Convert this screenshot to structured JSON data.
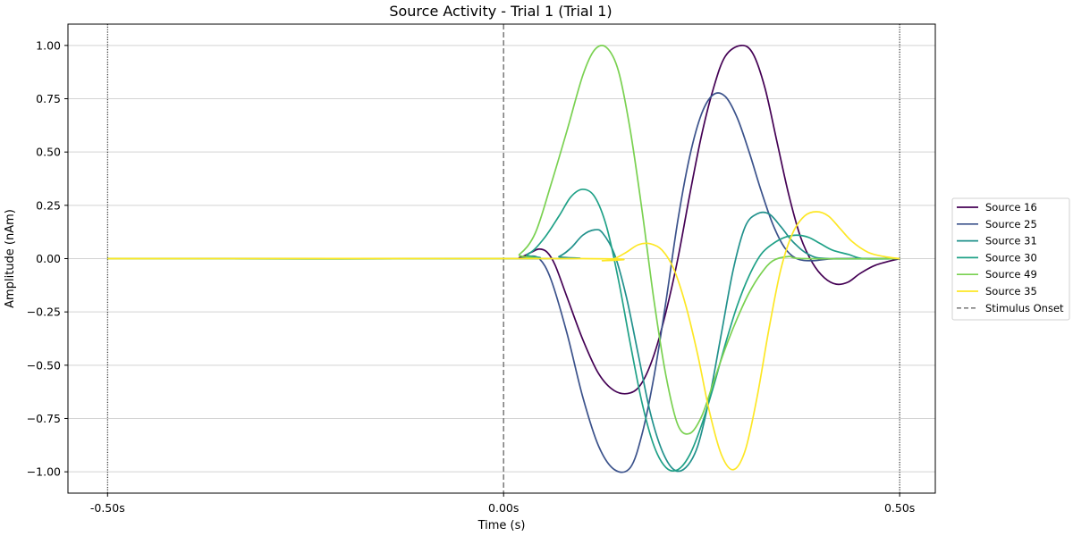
{
  "chart_data": {
    "type": "line",
    "title": "Source Activity - Trial 1 (Trial 1)",
    "xlabel": "Time (s)",
    "ylabel": "Amplitude (nAm)",
    "xlim": [
      -0.55,
      0.545
    ],
    "ylim": [
      -1.1,
      1.1
    ],
    "x_ticks": [
      -0.5,
      0.0,
      0.5
    ],
    "x_tick_labels": [
      "-0.50s",
      "0.00s",
      "0.50s"
    ],
    "y_ticks": [
      1.0,
      0.75,
      0.5,
      0.25,
      0.0,
      -0.25,
      -0.5,
      -0.75,
      -1.0
    ],
    "y_tick_labels": [
      "1.00",
      "0.75",
      "0.50",
      "0.25",
      "0.00",
      "−0.25",
      "−0.50",
      "−0.75",
      "−1.00"
    ],
    "grid": "y-only",
    "legend_position": "center-right-outside",
    "series": [
      {
        "name": "Source 16",
        "color": "#440154",
        "points": [
          [
            -0.5,
            0
          ],
          [
            0.0,
            0
          ],
          [
            0.02,
            0.005
          ],
          [
            0.035,
            0.03
          ],
          [
            0.045,
            0.045
          ],
          [
            0.055,
            0.03
          ],
          [
            0.065,
            -0.03
          ],
          [
            0.08,
            -0.18
          ],
          [
            0.1,
            -0.38
          ],
          [
            0.12,
            -0.54
          ],
          [
            0.14,
            -0.62
          ],
          [
            0.16,
            -0.63
          ],
          [
            0.175,
            -0.58
          ],
          [
            0.19,
            -0.45
          ],
          [
            0.205,
            -0.25
          ],
          [
            0.22,
            0.0
          ],
          [
            0.235,
            0.3
          ],
          [
            0.25,
            0.58
          ],
          [
            0.265,
            0.8
          ],
          [
            0.28,
            0.95
          ],
          [
            0.3,
            1.0
          ],
          [
            0.315,
            0.96
          ],
          [
            0.33,
            0.8
          ],
          [
            0.345,
            0.55
          ],
          [
            0.36,
            0.3
          ],
          [
            0.375,
            0.1
          ],
          [
            0.39,
            -0.02
          ],
          [
            0.405,
            -0.09
          ],
          [
            0.42,
            -0.12
          ],
          [
            0.435,
            -0.11
          ],
          [
            0.45,
            -0.07
          ],
          [
            0.47,
            -0.03
          ],
          [
            0.5,
            0.0
          ]
        ]
      },
      {
        "name": "Source 25",
        "color": "#3b528b",
        "points": [
          [
            -0.5,
            0
          ],
          [
            0.0,
            0
          ],
          [
            0.02,
            0.0
          ],
          [
            0.03,
            0.01
          ],
          [
            0.045,
            0.0
          ],
          [
            0.06,
            -0.1
          ],
          [
            0.08,
            -0.35
          ],
          [
            0.1,
            -0.65
          ],
          [
            0.12,
            -0.88
          ],
          [
            0.14,
            -0.99
          ],
          [
            0.16,
            -0.98
          ],
          [
            0.175,
            -0.82
          ],
          [
            0.19,
            -0.55
          ],
          [
            0.205,
            -0.2
          ],
          [
            0.22,
            0.18
          ],
          [
            0.235,
            0.48
          ],
          [
            0.25,
            0.68
          ],
          [
            0.265,
            0.77
          ],
          [
            0.28,
            0.76
          ],
          [
            0.295,
            0.66
          ],
          [
            0.31,
            0.5
          ],
          [
            0.325,
            0.32
          ],
          [
            0.34,
            0.16
          ],
          [
            0.355,
            0.05
          ],
          [
            0.37,
            0.0
          ],
          [
            0.39,
            -0.01
          ],
          [
            0.42,
            0.0
          ],
          [
            0.5,
            0.0
          ]
        ]
      },
      {
        "name": "Source 31",
        "color": "#21918c",
        "points": [
          [
            -0.5,
            0
          ],
          [
            0.05,
            0
          ],
          [
            0.07,
            0.01
          ],
          [
            0.085,
            0.05
          ],
          [
            0.1,
            0.11
          ],
          [
            0.115,
            0.135
          ],
          [
            0.125,
            0.12
          ],
          [
            0.14,
            0.02
          ],
          [
            0.155,
            -0.18
          ],
          [
            0.17,
            -0.45
          ],
          [
            0.185,
            -0.72
          ],
          [
            0.2,
            -0.9
          ],
          [
            0.215,
            -0.99
          ],
          [
            0.23,
            -0.98
          ],
          [
            0.245,
            -0.88
          ],
          [
            0.26,
            -0.65
          ],
          [
            0.275,
            -0.35
          ],
          [
            0.29,
            -0.05
          ],
          [
            0.305,
            0.15
          ],
          [
            0.32,
            0.21
          ],
          [
            0.335,
            0.21
          ],
          [
            0.35,
            0.15
          ],
          [
            0.365,
            0.08
          ],
          [
            0.385,
            0.02
          ],
          [
            0.41,
            0.0
          ],
          [
            0.5,
            0.0
          ]
        ]
      },
      {
        "name": "Source 30",
        "color": "#1fa187",
        "points": [
          [
            -0.5,
            0
          ],
          [
            0.0,
            0
          ],
          [
            0.03,
            0.02
          ],
          [
            0.05,
            0.09
          ],
          [
            0.07,
            0.2
          ],
          [
            0.085,
            0.29
          ],
          [
            0.1,
            0.325
          ],
          [
            0.115,
            0.29
          ],
          [
            0.13,
            0.15
          ],
          [
            0.145,
            -0.1
          ],
          [
            0.16,
            -0.4
          ],
          [
            0.175,
            -0.68
          ],
          [
            0.19,
            -0.88
          ],
          [
            0.205,
            -0.98
          ],
          [
            0.22,
            -0.99
          ],
          [
            0.235,
            -0.92
          ],
          [
            0.25,
            -0.78
          ],
          [
            0.265,
            -0.6
          ],
          [
            0.28,
            -0.4
          ],
          [
            0.295,
            -0.22
          ],
          [
            0.31,
            -0.08
          ],
          [
            0.325,
            0.02
          ],
          [
            0.34,
            0.07
          ],
          [
            0.355,
            0.1
          ],
          [
            0.37,
            0.11
          ],
          [
            0.385,
            0.1
          ],
          [
            0.4,
            0.07
          ],
          [
            0.415,
            0.04
          ],
          [
            0.435,
            0.02
          ],
          [
            0.455,
            0.0
          ],
          [
            0.5,
            0.0
          ]
        ]
      },
      {
        "name": "Source 49",
        "color": "#7ad151",
        "points": [
          [
            -0.5,
            0
          ],
          [
            0.0,
            0
          ],
          [
            0.02,
            0.02
          ],
          [
            0.04,
            0.12
          ],
          [
            0.06,
            0.35
          ],
          [
            0.08,
            0.6
          ],
          [
            0.1,
            0.86
          ],
          [
            0.115,
            0.98
          ],
          [
            0.13,
            0.99
          ],
          [
            0.145,
            0.88
          ],
          [
            0.16,
            0.6
          ],
          [
            0.175,
            0.22
          ],
          [
            0.19,
            -0.2
          ],
          [
            0.205,
            -0.55
          ],
          [
            0.22,
            -0.78
          ],
          [
            0.235,
            -0.82
          ],
          [
            0.25,
            -0.74
          ],
          [
            0.265,
            -0.58
          ],
          [
            0.28,
            -0.42
          ],
          [
            0.295,
            -0.28
          ],
          [
            0.31,
            -0.16
          ],
          [
            0.325,
            -0.07
          ],
          [
            0.34,
            -0.01
          ],
          [
            0.36,
            0.01
          ],
          [
            0.38,
            0.0
          ],
          [
            0.5,
            0.0
          ]
        ]
      },
      {
        "name": "Source 35",
        "color": "#fde725",
        "points": [
          [
            -0.5,
            0
          ],
          [
            0.1,
            0
          ],
          [
            0.125,
            -0.01
          ],
          [
            0.14,
            0.0
          ],
          [
            0.155,
            0.03
          ],
          [
            0.17,
            0.065
          ],
          [
            0.185,
            0.07
          ],
          [
            0.2,
            0.04
          ],
          [
            0.215,
            -0.05
          ],
          [
            0.23,
            -0.22
          ],
          [
            0.245,
            -0.45
          ],
          [
            0.26,
            -0.72
          ],
          [
            0.275,
            -0.92
          ],
          [
            0.29,
            -0.99
          ],
          [
            0.305,
            -0.9
          ],
          [
            0.32,
            -0.65
          ],
          [
            0.335,
            -0.33
          ],
          [
            0.35,
            -0.05
          ],
          [
            0.365,
            0.12
          ],
          [
            0.38,
            0.2
          ],
          [
            0.395,
            0.22
          ],
          [
            0.41,
            0.2
          ],
          [
            0.425,
            0.14
          ],
          [
            0.44,
            0.08
          ],
          [
            0.46,
            0.03
          ],
          [
            0.48,
            0.01
          ],
          [
            0.5,
            0.0
          ]
        ]
      }
    ],
    "reference_lines": [
      {
        "name": "Stimulus Onset",
        "x": 0.0,
        "style": "dashed",
        "color": "#808080",
        "in_legend": true
      },
      {
        "x": -0.5,
        "style": "dotted",
        "color": "#000000",
        "in_legend": false
      },
      {
        "x": 0.5,
        "style": "dotted",
        "color": "#000000",
        "in_legend": false
      }
    ]
  }
}
